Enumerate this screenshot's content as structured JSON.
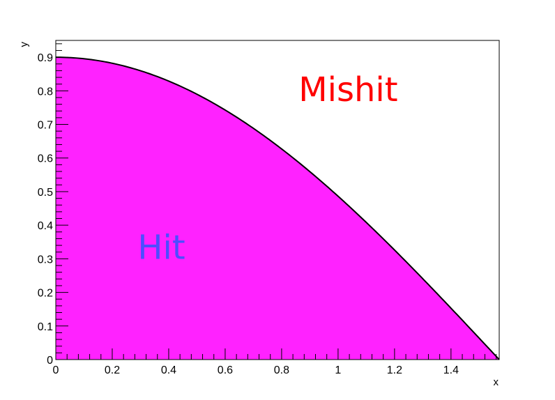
{
  "chart_data": {
    "type": "area",
    "function": "0.9*cos(x)",
    "x": [
      0,
      0.1,
      0.2,
      0.3,
      0.4,
      0.5,
      0.6,
      0.7,
      0.8,
      0.9,
      1.0,
      1.1,
      1.2,
      1.3,
      1.4,
      1.5,
      1.5708
    ],
    "y": [
      0.9,
      0.8955,
      0.8821,
      0.8598,
      0.829,
      0.7898,
      0.7428,
      0.6883,
      0.627,
      0.5594,
      0.4863,
      0.4082,
      0.3261,
      0.2407,
      0.1529,
      0.0637,
      0.0
    ],
    "xlabel": "x",
    "ylabel": "y",
    "xlim": [
      0,
      1.5708
    ],
    "ylim": [
      0,
      0.95
    ],
    "x_ticks": [
      0,
      0.2,
      0.4,
      0.6,
      0.8,
      1,
      1.2,
      1.4
    ],
    "x_tick_labels": [
      "0",
      "0.2",
      "0.4",
      "0.6",
      "0.8",
      "1",
      "1.2",
      "1.4"
    ],
    "y_ticks": [
      0,
      0.1,
      0.2,
      0.3,
      0.4,
      0.5,
      0.6,
      0.7,
      0.8,
      0.9
    ],
    "y_tick_labels": [
      "0",
      "0.1",
      "0.2",
      "0.3",
      "0.4",
      "0.5",
      "0.6",
      "0.7",
      "0.8",
      "0.9"
    ],
    "grid": false,
    "annotations": [
      {
        "text": "Mishit",
        "x": 0.86,
        "y": 0.77,
        "color": "#ff0000"
      },
      {
        "text": "Hit",
        "x": 0.29,
        "y": 0.3,
        "color": "#4d4dff"
      }
    ],
    "fill_color": "#ff22ff",
    "line_color": "#000000"
  }
}
